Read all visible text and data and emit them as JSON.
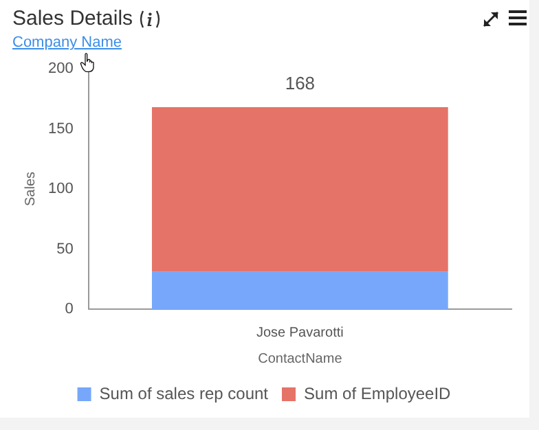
{
  "chart_data": {
    "type": "bar",
    "title": "Sales Details",
    "subtitle": "Company Name",
    "xlabel": "ContactName",
    "ylabel": "Sales",
    "categories": [
      "Jose Pavarotti"
    ],
    "stacked": true,
    "series": [
      {
        "name": "Sum of sales rep count",
        "color": "#76a7fa",
        "values": [
          31
        ]
      },
      {
        "name": "Sum of EmployeeID",
        "color": "#e57368",
        "values": [
          137
        ]
      }
    ],
    "totals": [
      "168"
    ],
    "ylim": [
      0,
      200
    ],
    "yticks": [
      0,
      50,
      100,
      150,
      200
    ],
    "grid": false,
    "legend": "bottom"
  }
}
